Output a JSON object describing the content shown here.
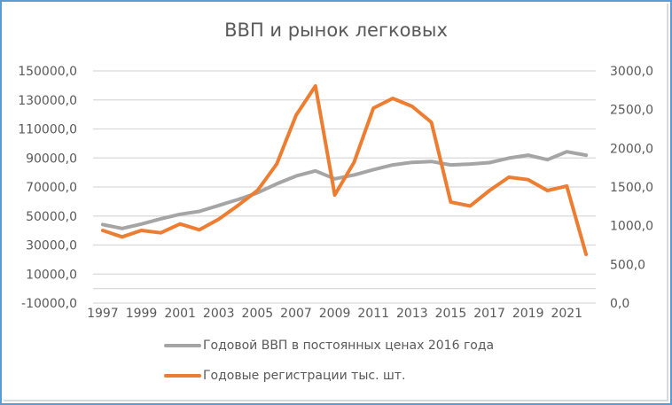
{
  "chart_data": {
    "type": "line",
    "title": "ВВП и рынок легковых",
    "categories": [
      "1997",
      "1998",
      "1999",
      "2000",
      "2001",
      "2002",
      "2003",
      "2004",
      "2005",
      "2006",
      "2007",
      "2008",
      "2009",
      "2010",
      "2011",
      "2012",
      "2013",
      "2014",
      "2015",
      "2016",
      "2017",
      "2018",
      "2019",
      "2020",
      "2021",
      "2022"
    ],
    "x_tick_labels": [
      "1997",
      "1999",
      "2001",
      "2003",
      "2005",
      "2007",
      "2009",
      "2011",
      "2013",
      "2015",
      "2017",
      "2019",
      "2021"
    ],
    "series": [
      {
        "name": "Годовой ВВП в постоянных ценах 2016 года",
        "axis": "left",
        "color": "#a5a5a5",
        "values": [
          44100,
          41400,
          44500,
          48100,
          51200,
          53200,
          57300,
          61400,
          66000,
          72200,
          77600,
          81100,
          75600,
          78300,
          82000,
          85200,
          87000,
          87600,
          85200,
          85800,
          86800,
          89900,
          91900,
          88800,
          94300,
          91900
        ]
      },
      {
        "name": "Годовые регистрации тыс. шт.",
        "axis": "right",
        "color": "#ed7d31",
        "values": [
          939,
          855,
          939,
          908,
          1022,
          947,
          1084,
          1263,
          1454,
          1798,
          2427,
          2805,
          1397,
          1820,
          2519,
          2645,
          2542,
          2336,
          1305,
          1255,
          1454,
          1626,
          1595,
          1454,
          1511,
          630
        ]
      }
    ],
    "left_axis": {
      "ylim": [
        -10000,
        150000
      ],
      "ticks": [
        150000,
        130000,
        110000,
        90000,
        70000,
        50000,
        30000,
        10000,
        -10000
      ],
      "tick_labels": [
        "150000,0",
        "130000,0",
        "110000,0",
        "90000,0",
        "70000,0",
        "50000,0",
        "30000,0",
        "10000,0",
        "-10000,0"
      ]
    },
    "right_axis": {
      "ylim": [
        0,
        3000
      ],
      "ticks": [
        3000,
        2500,
        2000,
        1500,
        1000,
        500,
        0
      ],
      "tick_labels": [
        "3000,0",
        "2500,0",
        "2000,0",
        "1500,0",
        "1000,0",
        "500,0",
        "0,0"
      ]
    },
    "grid": true,
    "legend_position": "bottom"
  },
  "legend": {
    "items": [
      {
        "label": "Годовой ВВП в постоянных ценах 2016 года",
        "color": "#a5a5a5"
      },
      {
        "label": "Годовые регистрации тыс. шт.",
        "color": "#ed7d31"
      }
    ]
  }
}
